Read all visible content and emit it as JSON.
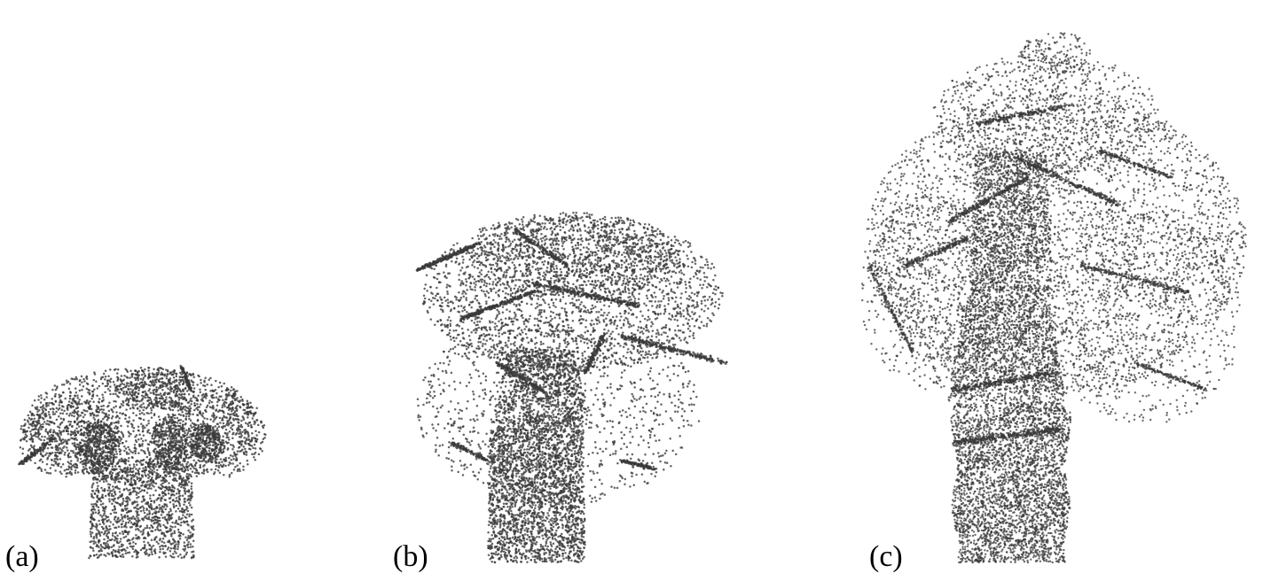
{
  "figure": {
    "panels": [
      {
        "id": "a",
        "label": "(a)"
      },
      {
        "id": "b",
        "label": "(b)"
      },
      {
        "id": "c",
        "label": "(c)"
      }
    ],
    "colors": {
      "background": "#ffffff",
      "points": "#3a3a3a",
      "label": "#000000"
    }
  }
}
